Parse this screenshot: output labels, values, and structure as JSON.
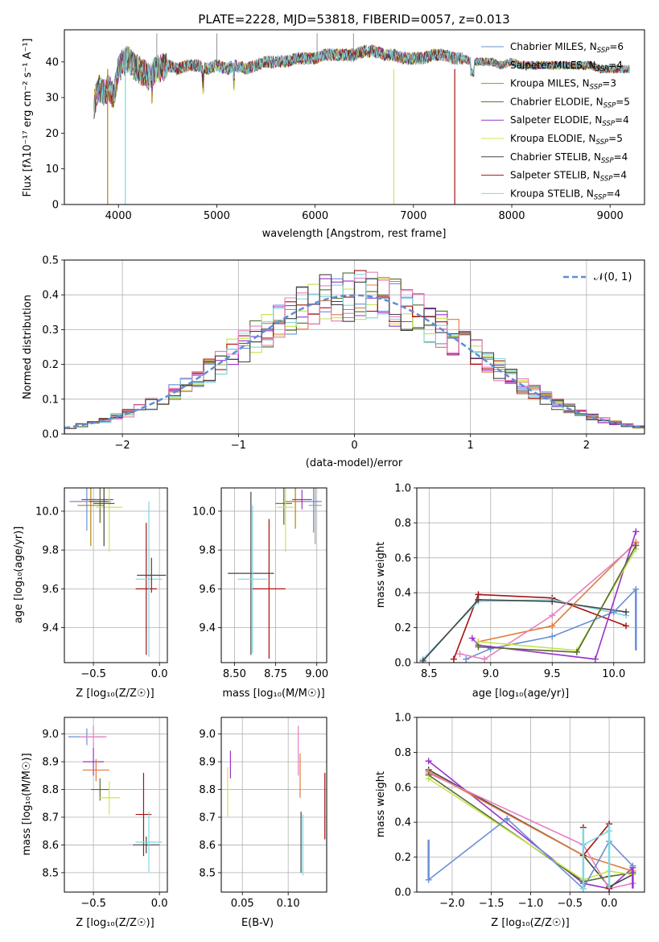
{
  "colors": [
    "#6a8fd6",
    "#9aa0a6",
    "#b8860b",
    "#556b2f",
    "#9932cc",
    "#d4e157",
    "#444444",
    "#aa1111",
    "#7fd8e0"
  ],
  "extra_colors": {
    "orange": "#e07b39",
    "pink": "#e87fbf",
    "lime": "#c6e24f"
  },
  "chart_data": [
    {
      "id": "spectrum",
      "type": "line",
      "title": "PLATE=2228, MJD=53818, FIBERID=0057, z=0.013",
      "xlabel": "wavelength [Angstrom, rest frame]",
      "ylabel": "Flux [fλ10⁻¹⁷ erg cm⁻² s⁻¹ A⁻¹]",
      "xlim": [
        3450,
        9350
      ],
      "ylim": [
        0,
        49
      ],
      "xticks": [
        4000,
        5000,
        6000,
        7000,
        8000,
        9000
      ],
      "yticks": [
        0,
        10,
        20,
        30,
        40
      ],
      "grid": false,
      "legend_position": "top-right",
      "legend": [
        {
          "main": "Chabrier MILES, N",
          "sub": "SSP",
          "tail": "=6"
        },
        {
          "main": "Salpeter MILES, N",
          "sub": "SSP",
          "tail": "=4"
        },
        {
          "main": "Kroupa MILES, N",
          "sub": "SSP",
          "tail": "=3"
        },
        {
          "main": "Chabrier ELODIE, N",
          "sub": "SSP",
          "tail": "=5"
        },
        {
          "main": "Salpeter ELODIE, N",
          "sub": "SSP",
          "tail": "=4"
        },
        {
          "main": "Kroupa ELODIE, N",
          "sub": "SSP",
          "tail": "=5"
        },
        {
          "main": "Chabrier STELIB, N",
          "sub": "SSP",
          "tail": "=4"
        },
        {
          "main": "Salpeter STELIB, N",
          "sub": "SSP",
          "tail": "=4"
        },
        {
          "main": "Kroupa STELIB, N",
          "sub": "SSP",
          "tail": "=4"
        }
      ],
      "x": [
        3750,
        3800,
        3850,
        3900,
        3950,
        4000,
        4050,
        4100,
        4150,
        4200,
        4300,
        4400,
        4500,
        4600,
        4700,
        4800,
        4900,
        5000,
        5100,
        5200,
        5300,
        5400,
        5500,
        5600,
        5700,
        5800,
        5900,
        6000,
        6100,
        6200,
        6300,
        6400,
        6500,
        6600,
        6700,
        6800,
        6900,
        7000,
        7100,
        7200,
        7300,
        7400,
        7500,
        7600,
        7700,
        7800,
        7900,
        8000,
        8100,
        8200,
        8300,
        8400,
        8500,
        8600,
        8700,
        8800,
        8900,
        9000,
        9100,
        9200
      ],
      "y": [
        28,
        33,
        31,
        33,
        30,
        38,
        40,
        41,
        39,
        38,
        36,
        38,
        39,
        38,
        39,
        39,
        38,
        39,
        38,
        39,
        38,
        39,
        40,
        40,
        40,
        41,
        41,
        41,
        42,
        42,
        42,
        42,
        43,
        43,
        42,
        42,
        41,
        41,
        41,
        42,
        42,
        41,
        41,
        40,
        40,
        40,
        39,
        40,
        39,
        39,
        39,
        39,
        39,
        39,
        39,
        39,
        38,
        38,
        38,
        38
      ]
    },
    {
      "id": "residuals",
      "type": "histogram",
      "xlabel": "(data-model)/error",
      "ylabel": "Normed distribution",
      "xlim": [
        -2.5,
        2.5
      ],
      "ylim": [
        0,
        0.5
      ],
      "xticks": [
        -2,
        -1,
        0,
        1,
        2
      ],
      "xtick_labels": [
        "−2",
        "−1",
        "0",
        "1",
        "2"
      ],
      "yticks": [
        0.0,
        0.1,
        0.2,
        0.3,
        0.4,
        0.5
      ],
      "ytick_labels": [
        "0.0",
        "0.1",
        "0.2",
        "0.3",
        "0.4",
        "0.5"
      ],
      "grid": true,
      "legend_position": "top-right",
      "legend_label": "𝒩(0, 1)",
      "bins": 50
    },
    {
      "id": "age-vs-Z",
      "type": "errorbar",
      "xlabel": "Z [log₁₀(Z/Z☉)]",
      "ylabel": "age  [log₁₀(age/yr)]",
      "xlim": [
        -0.72,
        0.06
      ],
      "ylim": [
        9.22,
        10.12
      ],
      "xticks": [
        -0.5,
        0.0
      ],
      "xtick_labels": [
        "−0.5",
        "0.0"
      ],
      "yticks": [
        9.4,
        9.6,
        9.8,
        10.0
      ],
      "ytick_labels": [
        "9.4",
        "9.6",
        "9.8",
        "10.0"
      ],
      "grid": true,
      "points": [
        {
          "x": -0.55,
          "y": 10.05,
          "xerr": 0.13,
          "yerr": 0.15,
          "c": 0
        },
        {
          "x": -0.5,
          "y": 10.05,
          "xerr": 0.1,
          "yerr": 0.0,
          "c": 1
        },
        {
          "x": -0.52,
          "y": 10.03,
          "xerr": 0.1,
          "yerr": 0.21,
          "c": 2
        },
        {
          "x": -0.45,
          "y": 10.05,
          "xerr": 0.08,
          "yerr": 0.11,
          "c": 3
        },
        {
          "x": -0.47,
          "y": 10.06,
          "xerr": 0.12,
          "yerr": 0.0,
          "c": 4
        },
        {
          "x": -0.38,
          "y": 10.02,
          "xerr": 0.1,
          "yerr": 0.23,
          "c": 5
        },
        {
          "x": -0.42,
          "y": 10.04,
          "xerr": 0.08,
          "yerr": 0.22,
          "c": 6
        },
        {
          "x": -0.1,
          "y": 9.6,
          "xerr": 0.08,
          "yerr": 0.34,
          "c": 7
        },
        {
          "x": -0.08,
          "y": 9.65,
          "xerr": 0.1,
          "yerr": 0.4,
          "c": 8
        },
        {
          "x": -0.06,
          "y": 9.67,
          "xerr": 0.11,
          "yerr": 0.09,
          "c": 6
        }
      ]
    },
    {
      "id": "age-vs-mass",
      "type": "errorbar",
      "xlabel": "mass [log₁₀(M/M☉)]",
      "ylabel": "",
      "xlim": [
        8.42,
        9.06
      ],
      "ylim": [
        9.22,
        10.12
      ],
      "xticks": [
        8.5,
        8.75,
        9.0
      ],
      "xtick_labels": [
        "8.50",
        "8.75",
        "9.00"
      ],
      "yticks": [
        9.4,
        9.6,
        9.8,
        10.0
      ],
      "ytick_labels": [
        "9.4",
        "9.6",
        "9.8",
        "10.0"
      ],
      "grid": true,
      "points": [
        {
          "x": 8.8,
          "y": 10.04,
          "xerr": 0.05,
          "yerr": 0.11,
          "c": 3
        },
        {
          "x": 8.81,
          "y": 10.02,
          "xerr": 0.05,
          "yerr": 0.23,
          "c": 5
        },
        {
          "x": 8.87,
          "y": 10.05,
          "xerr": 0.06,
          "yerr": 0.14,
          "c": 2
        },
        {
          "x": 8.91,
          "y": 10.06,
          "xerr": 0.06,
          "yerr": 0.05,
          "c": 4
        },
        {
          "x": 8.98,
          "y": 10.05,
          "xerr": 0.05,
          "yerr": 0.16,
          "c": 0
        },
        {
          "x": 8.99,
          "y": 10.03,
          "xerr": 0.04,
          "yerr": 0.2,
          "c": 1
        },
        {
          "x": 8.6,
          "y": 9.68,
          "xerr": 0.14,
          "yerr": 0.42,
          "c": 6
        },
        {
          "x": 8.61,
          "y": 9.65,
          "xerr": 0.09,
          "yerr": 0.38,
          "c": 8
        },
        {
          "x": 8.71,
          "y": 9.6,
          "xerr": 0.1,
          "yerr": 0.36,
          "c": 7
        }
      ]
    },
    {
      "id": "weight-vs-age",
      "type": "line",
      "xlabel": "age  [log₁₀(age/yr)]",
      "ylabel": "mass weight",
      "xlim": [
        8.4,
        10.25
      ],
      "ylim": [
        0.0,
        1.0
      ],
      "xticks": [
        8.5,
        9.0,
        9.5,
        10.0
      ],
      "xtick_labels": [
        "8.5",
        "9.0",
        "9.5",
        "10.0"
      ],
      "yticks": [
        0.0,
        0.2,
        0.4,
        0.6,
        0.8,
        1.0
      ],
      "ytick_labels": [
        "0.0",
        "0.2",
        "0.4",
        "0.6",
        "0.8",
        "1.0"
      ],
      "grid": true,
      "series": [
        {
          "c": 7,
          "x": [
            8.7,
            8.9,
            9.5,
            10.1
          ],
          "y": [
            0.02,
            0.39,
            0.37,
            0.21
          ]
        },
        {
          "c": 8,
          "x": [
            8.45,
            8.9,
            9.5,
            10.1
          ],
          "y": [
            0.02,
            0.35,
            0.36,
            0.27
          ]
        },
        {
          "c": 6,
          "x": [
            8.45,
            8.9,
            9.5,
            10.1
          ],
          "y": [
            0.01,
            0.36,
            0.35,
            0.29
          ]
        },
        {
          "c": 0,
          "x": [
            8.8,
            9.0,
            9.5,
            10.0,
            10.18
          ],
          "y": [
            0.02,
            0.08,
            0.15,
            0.29,
            0.42
          ]
        },
        {
          "c": "orange",
          "x": [
            8.9,
            9.5,
            10.18
          ],
          "y": [
            0.12,
            0.21,
            0.69
          ]
        },
        {
          "c": "pink",
          "x": [
            8.75,
            8.95,
            9.5,
            10.18
          ],
          "y": [
            0.05,
            0.02,
            0.27,
            0.68
          ]
        },
        {
          "c": 4,
          "x": [
            8.85,
            8.9,
            9.85,
            10.18
          ],
          "y": [
            0.14,
            0.1,
            0.02,
            0.75
          ]
        },
        {
          "c": "lime",
          "x": [
            8.9,
            9.7,
            10.18
          ],
          "y": [
            0.12,
            0.07,
            0.65
          ]
        },
        {
          "c": 3,
          "x": [
            8.9,
            9.7,
            10.18
          ],
          "y": [
            0.09,
            0.06,
            0.67
          ]
        }
      ],
      "vbars": [
        {
          "x": 10.18,
          "y0": 0.07,
          "y1": 0.42,
          "c": 0
        }
      ]
    },
    {
      "id": "mass-vs-Z",
      "type": "errorbar",
      "xlabel": "Z [log₁₀(Z/Z☉)]",
      "ylabel": "mass [log₁₀(M/M☉)]",
      "xlim": [
        -0.72,
        0.06
      ],
      "ylim": [
        8.43,
        9.06
      ],
      "xticks": [
        -0.5,
        0.0
      ],
      "xtick_labels": [
        "−0.5",
        "0.0"
      ],
      "yticks": [
        8.5,
        8.6,
        8.7,
        8.8,
        8.9,
        9.0
      ],
      "ytick_labels": [
        "8.5",
        "8.6",
        "8.7",
        "8.8",
        "8.9",
        "9.0"
      ],
      "grid": true,
      "points": [
        {
          "x": -0.55,
          "y": 8.99,
          "xerr": 0.14,
          "yerr": 0.03,
          "c": 0
        },
        {
          "x": -0.5,
          "y": 8.99,
          "xerr": 0.1,
          "yerr": 0.04,
          "c": "pink"
        },
        {
          "x": -0.5,
          "y": 8.9,
          "xerr": 0.08,
          "yerr": 0.05,
          "c": 4
        },
        {
          "x": -0.48,
          "y": 8.87,
          "xerr": 0.1,
          "yerr": 0.04,
          "c": "orange"
        },
        {
          "x": -0.45,
          "y": 8.8,
          "xerr": 0.07,
          "yerr": 0.04,
          "c": 3
        },
        {
          "x": -0.38,
          "y": 8.77,
          "xerr": 0.08,
          "yerr": 0.06,
          "c": 5
        },
        {
          "x": -0.12,
          "y": 8.71,
          "xerr": 0.06,
          "yerr": 0.15,
          "c": 7
        },
        {
          "x": -0.1,
          "y": 8.6,
          "xerr": 0.1,
          "yerr": 0.03,
          "c": 6
        },
        {
          "x": -0.08,
          "y": 8.61,
          "xerr": 0.1,
          "yerr": 0.11,
          "c": 8
        }
      ]
    },
    {
      "id": "mass-vs-EBV",
      "type": "errorbar",
      "xlabel": "E(B-V)",
      "ylabel": "",
      "xlim": [
        0.027,
        0.142
      ],
      "ylim": [
        8.43,
        9.06
      ],
      "xticks": [
        0.05,
        0.1
      ],
      "xtick_labels": [
        "0.05",
        "0.10"
      ],
      "yticks": [
        8.5,
        8.6,
        8.7,
        8.8,
        8.9,
        9.0
      ],
      "ytick_labels": [
        "8.5",
        "8.6",
        "8.7",
        "8.8",
        "8.9",
        "9.0"
      ],
      "grid": true,
      "points": [
        {
          "x": 0.034,
          "y": 8.79,
          "xerr": 0.0,
          "yerr": 0.09,
          "c": 5
        },
        {
          "x": 0.037,
          "y": 8.89,
          "xerr": 0.0,
          "yerr": 0.05,
          "c": 4
        },
        {
          "x": 0.111,
          "y": 8.94,
          "xerr": 0.0,
          "yerr": 0.09,
          "c": "pink"
        },
        {
          "x": 0.113,
          "y": 8.85,
          "xerr": 0.0,
          "yerr": 0.08,
          "c": "orange"
        },
        {
          "x": 0.114,
          "y": 8.61,
          "xerr": 0.0,
          "yerr": 0.11,
          "c": 6
        },
        {
          "x": 0.116,
          "y": 8.6,
          "xerr": 0.0,
          "yerr": 0.11,
          "c": 8
        },
        {
          "x": 0.14,
          "y": 8.74,
          "xerr": 0.0,
          "yerr": 0.12,
          "c": 7
        }
      ]
    },
    {
      "id": "weight-vs-Z",
      "type": "line",
      "xlabel": "Z [log₁₀(Z/Z☉)]",
      "ylabel": "mass weight",
      "xlim": [
        -2.45,
        0.45
      ],
      "ylim": [
        0.0,
        1.0
      ],
      "xticks": [
        -2.0,
        -1.5,
        -1.0,
        -0.5,
        0.0
      ],
      "xtick_labels": [
        "−2.0",
        "−1.5",
        "−1.0",
        "−0.5",
        "0.0"
      ],
      "yticks": [
        0.0,
        0.2,
        0.4,
        0.6,
        0.8,
        1.0
      ],
      "ytick_labels": [
        "0.0",
        "0.2",
        "0.4",
        "0.6",
        "0.8",
        "1.0"
      ],
      "grid": true,
      "series": [
        {
          "c": 4,
          "x": [
            -2.3,
            -0.33,
            0.0,
            0.3
          ],
          "y": [
            0.75,
            0.05,
            0.02,
            0.14
          ]
        },
        {
          "c": 6,
          "x": [
            -2.3,
            -0.33,
            0.0,
            0.3
          ],
          "y": [
            0.7,
            0.21,
            0.03,
            0.1
          ]
        },
        {
          "c": "orange",
          "x": [
            -2.3,
            -0.33,
            0.3
          ],
          "y": [
            0.69,
            0.21,
            0.12
          ]
        },
        {
          "c": "pink",
          "x": [
            -2.3,
            -0.33,
            0.0,
            0.3
          ],
          "y": [
            0.68,
            0.27,
            0.02,
            0.05
          ]
        },
        {
          "c": 3,
          "x": [
            -2.3,
            -0.33,
            0.0,
            0.3
          ],
          "y": [
            0.67,
            0.06,
            0.09,
            0.11
          ]
        },
        {
          "c": "lime",
          "x": [
            -2.3,
            -0.33,
            0.0,
            0.3
          ],
          "y": [
            0.65,
            0.07,
            0.12,
            0.1
          ]
        },
        {
          "c": 0,
          "x": [
            -2.3,
            -1.3,
            -0.33,
            0.0,
            0.3
          ],
          "y": [
            0.07,
            0.42,
            0.02,
            0.29,
            0.15
          ]
        },
        {
          "c": 7,
          "x": [
            -0.33,
            -0.33,
            0.0,
            0.0
          ],
          "y": [
            0.37,
            0.21,
            0.39,
            0.02
          ]
        },
        {
          "c": 8,
          "x": [
            -0.33,
            -0.33,
            0.0
          ],
          "y": [
            0.02,
            0.27,
            0.35
          ]
        }
      ],
      "vbars": [
        {
          "x": -2.3,
          "y0": 0.07,
          "y1": 0.3,
          "c": 0
        },
        {
          "x": -0.33,
          "y0": 0.02,
          "y1": 0.37,
          "c": 8
        },
        {
          "x": 0.0,
          "y0": 0.02,
          "y1": 0.39,
          "c": 8
        },
        {
          "x": 0.3,
          "y0": 0.02,
          "y1": 0.14,
          "c": 4
        }
      ]
    }
  ]
}
